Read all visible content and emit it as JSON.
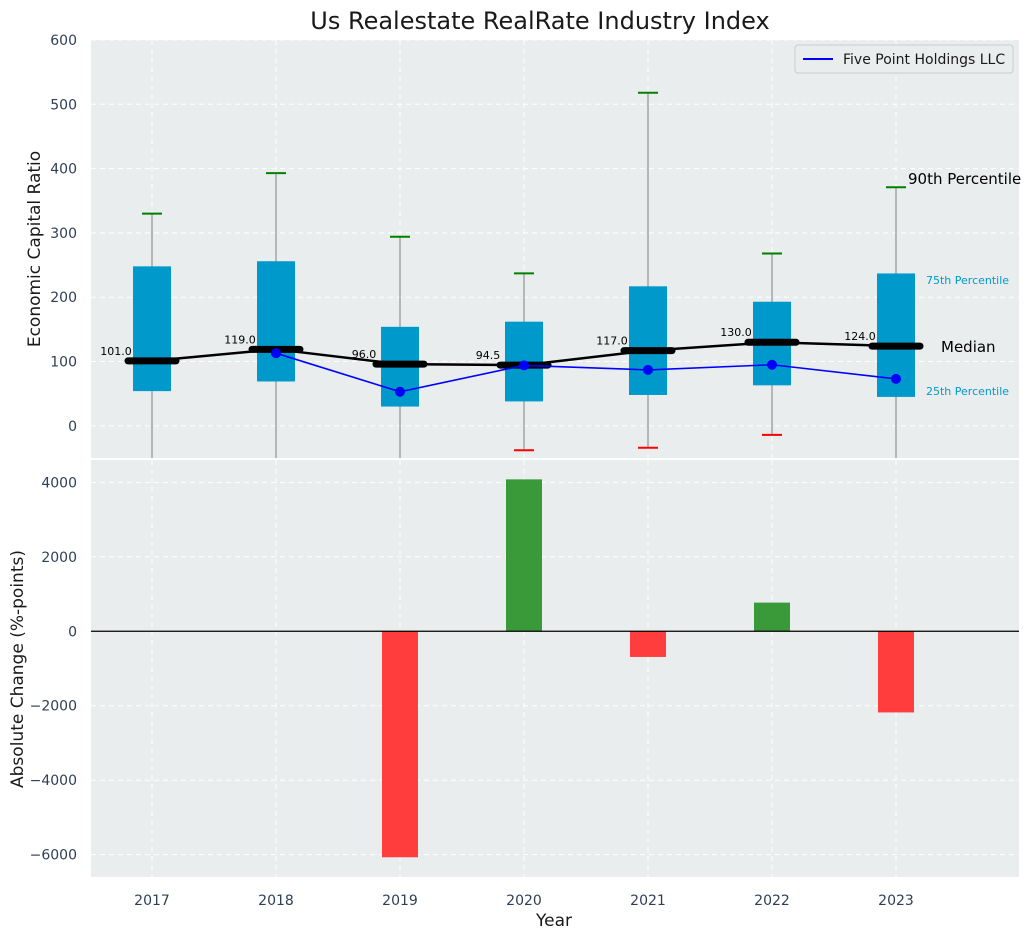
{
  "chart_data": [
    {
      "type": "box",
      "title": "Us Realestate RealRate Industry Index",
      "ylabel": "Economic Capital Ratio",
      "ylim": [
        -50,
        600
      ],
      "yticks": [
        0,
        100,
        200,
        300,
        400,
        500,
        600
      ],
      "categories": [
        "2017",
        "2018",
        "2019",
        "2020",
        "2021",
        "2022",
        "2023"
      ],
      "boxes": [
        {
          "p10": -50,
          "q1": 54,
          "median": 101.0,
          "q3": 248,
          "p90": 330,
          "median_label": "101.0"
        },
        {
          "p10": -50,
          "q1": 69,
          "median": 119.0,
          "q3": 256,
          "p90": 393,
          "median_label": "119.0"
        },
        {
          "p10": -50,
          "q1": 30,
          "median": 96.0,
          "q3": 154,
          "p90": 294,
          "median_label": "96.0"
        },
        {
          "p10": -38,
          "q1": 38,
          "median": 94.5,
          "q3": 162,
          "p90": 237,
          "median_label": "94.5"
        },
        {
          "p10": -34,
          "q1": 48,
          "median": 117.0,
          "q3": 217,
          "p90": 518,
          "median_label": "117.0"
        },
        {
          "p10": -14,
          "q1": 63,
          "median": 130.0,
          "q3": 193,
          "p90": 268,
          "median_label": "130.0"
        },
        {
          "p10": -50,
          "q1": 45,
          "median": 124.0,
          "q3": 237,
          "p90": 371,
          "median_label": "124.0"
        }
      ],
      "series": [
        {
          "name": "Five Point Holdings LLC",
          "values": [
            null,
            113,
            53,
            94,
            87,
            95,
            73
          ],
          "color": "#0000ff"
        }
      ],
      "annotations": {
        "p90": "90th Percentile",
        "q3": "75th Percentile",
        "median": "Median",
        "q1": "25th Percentile"
      },
      "legend": "top-right",
      "grid": true,
      "colors": {
        "box": "#0099cc",
        "median": "#000000",
        "p90_cap": "#008000",
        "p10_cap": "#ff0000",
        "whisker": "#808080"
      }
    },
    {
      "type": "bar",
      "xlabel": "Year",
      "ylabel": "Absolute Change (%-points)",
      "ylim": [
        -6600,
        4600
      ],
      "yticks": [
        -6000,
        -4000,
        -2000,
        0,
        2000,
        4000
      ],
      "categories": [
        "2017",
        "2018",
        "2019",
        "2020",
        "2021",
        "2022",
        "2023"
      ],
      "values": [
        0,
        0,
        -6070,
        4080,
        -690,
        770,
        -2180
      ],
      "grid": true,
      "colors": {
        "positive": "#3a9a3a",
        "negative": "#ff3d3d"
      }
    }
  ]
}
